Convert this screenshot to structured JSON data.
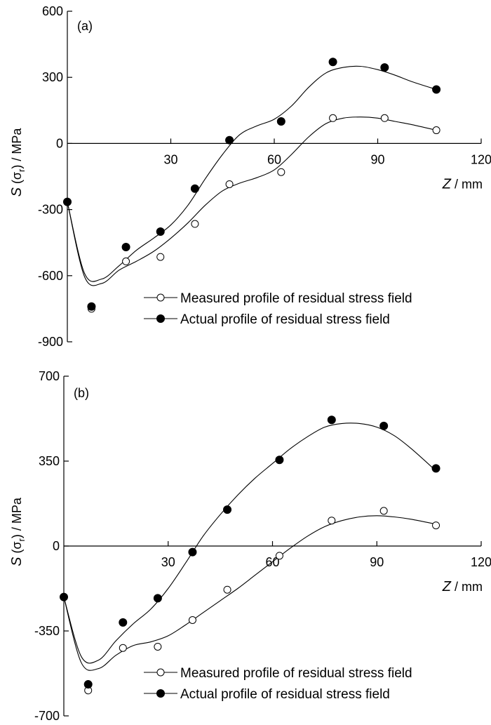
{
  "chart_data": [
    {
      "type": "scatter",
      "panel_label": "(a)",
      "xlabel": {
        "symbol": "Z",
        "unit": " / mm"
      },
      "ylabel": {
        "symbol": "S",
        "sigma": "(σ",
        "sub": "r",
        "unit": ") / MPa"
      },
      "xlim": [
        0,
        120
      ],
      "ylim": [
        -900,
        600
      ],
      "xticks": [
        30,
        60,
        90,
        120
      ],
      "yticks": [
        600,
        300,
        0,
        -300,
        -600,
        -900
      ],
      "xtick_labels": [
        "30",
        "60",
        "90",
        "120"
      ],
      "ytick_labels": [
        "600",
        "300",
        "0",
        "-300",
        "-600",
        "-900"
      ],
      "grid": false,
      "legend_position": "bottom-right",
      "series": [
        {
          "name": "Measured profile of residual stress field",
          "marker": "open-circle",
          "x": [
            0,
            7,
            17,
            27,
            37,
            47,
            62,
            77,
            92,
            107
          ],
          "y": [
            -265,
            -750,
            -535,
            -515,
            -365,
            -185,
            -130,
            115,
            115,
            60
          ]
        },
        {
          "name": "Actual profile of residual stress field",
          "marker": "filled-circle",
          "x": [
            0,
            7,
            17,
            27,
            37,
            47,
            62,
            77,
            92,
            107
          ],
          "y": [
            -265,
            -740,
            -470,
            -400,
            -205,
            15,
            100,
            370,
            345,
            245
          ]
        }
      ],
      "fit_curves": [
        {
          "x": [
            0,
            5,
            10,
            15,
            20,
            25,
            30,
            35,
            40,
            45,
            50,
            55,
            60,
            65,
            70,
            75,
            80,
            85,
            90,
            95,
            100,
            107
          ],
          "y": [
            -265,
            -605,
            -635,
            -575,
            -535,
            -490,
            -430,
            -360,
            -280,
            -215,
            -180,
            -155,
            -120,
            -50,
            30,
            90,
            115,
            120,
            115,
            100,
            85,
            60
          ]
        },
        {
          "x": [
            0,
            5,
            10,
            15,
            20,
            25,
            30,
            35,
            40,
            45,
            50,
            55,
            60,
            65,
            70,
            75,
            80,
            85,
            90,
            95,
            100,
            107
          ],
          "y": [
            -265,
            -590,
            -615,
            -555,
            -485,
            -430,
            -370,
            -280,
            -160,
            -50,
            40,
            80,
            110,
            170,
            255,
            320,
            345,
            350,
            335,
            310,
            280,
            245
          ]
        }
      ]
    },
    {
      "type": "scatter",
      "panel_label": "(b)",
      "xlabel": {
        "symbol": "Z",
        "unit": " / mm"
      },
      "ylabel": {
        "symbol": "S",
        "sigma": "(σ",
        "sub": "r",
        "unit": ") / MPa"
      },
      "xlim": [
        0,
        120
      ],
      "ylim": [
        -700,
        700
      ],
      "xticks": [
        30,
        60,
        90,
        120
      ],
      "yticks": [
        700,
        350,
        0,
        -350,
        -700
      ],
      "xtick_labels": [
        "30",
        "60",
        "90",
        "120"
      ],
      "ytick_labels": [
        "700",
        "350",
        "0",
        "-350",
        "-700"
      ],
      "grid": false,
      "legend_position": "bottom-right",
      "series": [
        {
          "name": "Measured profile of residual stress field",
          "marker": "open-circle",
          "x": [
            0,
            7,
            17,
            27,
            37,
            47,
            62,
            77,
            92,
            107
          ],
          "y": [
            -210,
            -595,
            -420,
            -415,
            -305,
            -180,
            -40,
            105,
            145,
            85
          ]
        },
        {
          "name": "Actual profile of residual stress field",
          "marker": "filled-circle",
          "x": [
            0,
            7,
            17,
            27,
            37,
            47,
            62,
            77,
            92,
            107
          ],
          "y": [
            -210,
            -570,
            -315,
            -215,
            -25,
            150,
            355,
            520,
            495,
            320
          ]
        }
      ],
      "fit_curves": [
        {
          "x": [
            0,
            5,
            10,
            15,
            20,
            25,
            30,
            35,
            40,
            45,
            50,
            55,
            60,
            65,
            70,
            75,
            80,
            85,
            90,
            95,
            100,
            107
          ],
          "y": [
            -210,
            -480,
            -505,
            -450,
            -410,
            -395,
            -370,
            -325,
            -275,
            -225,
            -175,
            -120,
            -65,
            -10,
            40,
            80,
            105,
            120,
            125,
            120,
            110,
            90
          ]
        },
        {
          "x": [
            0,
            5,
            10,
            15,
            20,
            25,
            30,
            35,
            40,
            45,
            50,
            55,
            60,
            65,
            70,
            75,
            80,
            85,
            90,
            95,
            100,
            107
          ],
          "y": [
            -210,
            -455,
            -470,
            -390,
            -320,
            -260,
            -175,
            -70,
            40,
            130,
            210,
            280,
            340,
            400,
            450,
            490,
            505,
            505,
            490,
            455,
            400,
            310
          ]
        }
      ]
    }
  ]
}
